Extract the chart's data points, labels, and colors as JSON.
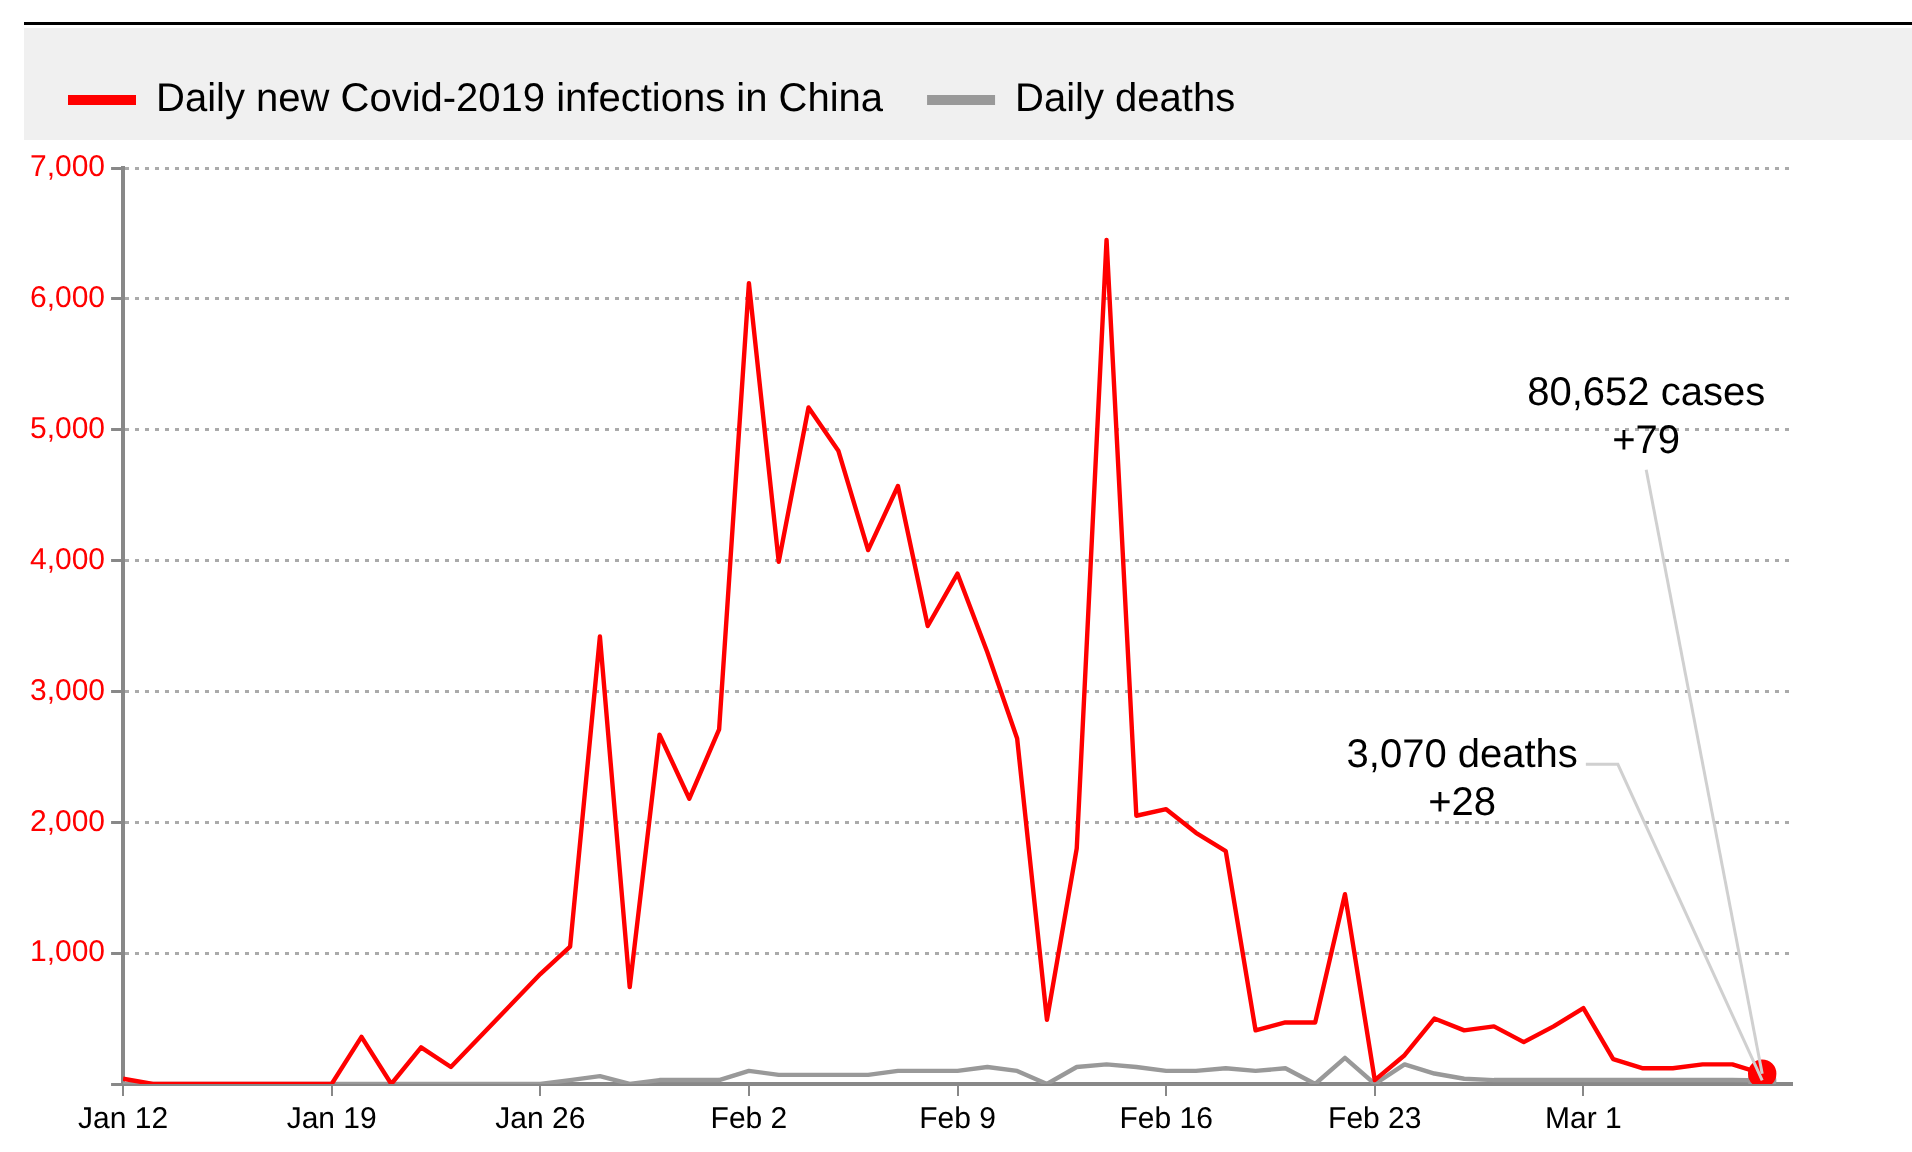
{
  "chart_data": {
    "type": "line",
    "legend": "top",
    "grid": "y",
    "marker": "none",
    "line_style": "solid",
    "xlim": [
      "--01-12",
      "--03-08"
    ],
    "xticks": [
      {
        "value": "--01-12",
        "label": "Jan 12"
      },
      {
        "value": "--01-19",
        "label": "Jan 19"
      },
      {
        "value": "--01-26",
        "label": "Jan 26"
      },
      {
        "value": "--02-02",
        "label": "Feb 2"
      },
      {
        "value": "--02-09",
        "label": "Feb 9"
      },
      {
        "value": "--02-16",
        "label": "Feb 16"
      },
      {
        "value": "--02-23",
        "label": "Feb 23"
      },
      {
        "value": "--03-01",
        "label": "Mar 1"
      }
    ],
    "ylim": [
      0,
      7000
    ],
    "yticks": [
      {
        "value": 0,
        "label": null
      },
      {
        "value": 1000,
        "label": "1,000"
      },
      {
        "value": 2000,
        "label": "2,000"
      },
      {
        "value": 3000,
        "label": "3,000"
      },
      {
        "value": 4000,
        "label": "4,000"
      },
      {
        "value": 5000,
        "label": "5,000"
      },
      {
        "value": 6000,
        "label": "6,000"
      },
      {
        "value": 7000,
        "label": "7,000"
      }
    ],
    "series": [
      {
        "name": "Daily new Covid-2019 infections in China",
        "color": "#ff0000",
        "x": [
          "--01-12",
          "--01-13",
          "--01-14",
          "--01-15",
          "--01-16",
          "--01-17",
          "--01-18",
          "--01-19",
          "--01-20",
          "--01-21",
          "--01-22",
          "--01-23",
          "--01-26",
          "--01-27",
          "--01-28",
          "--01-29",
          "--01-30",
          "--01-31",
          "--02-01",
          "--02-02",
          "--02-03",
          "--02-04",
          "--02-05",
          "--02-06",
          "--02-07",
          "--02-08",
          "--02-09",
          "--02-10",
          "--02-11",
          "--02-12",
          "--02-13",
          "--02-14",
          "--02-15",
          "--02-16",
          "--02-17",
          "--02-18",
          "--02-19",
          "--02-20",
          "--02-21",
          "--02-22",
          "--02-23",
          "--02-24",
          "--02-25",
          "--02-26",
          "--02-27",
          "--02-28",
          "--02-29",
          "--03-01",
          "--03-02",
          "--03-03",
          "--03-04",
          "--03-05",
          "--03-06",
          "--03-07"
        ],
        "values": [
          40,
          0,
          0,
          0,
          0,
          0,
          0,
          0,
          360,
          0,
          280,
          130,
          840,
          1050,
          3420,
          740,
          2670,
          2180,
          2710,
          6120,
          3990,
          5170,
          4840,
          4080,
          4570,
          3500,
          3900,
          3300,
          2640,
          490,
          1800,
          6450,
          2050,
          2100,
          1920,
          1780,
          410,
          470,
          470,
          1450,
          30,
          220,
          500,
          410,
          440,
          320,
          440,
          580,
          190,
          120,
          120,
          150,
          150,
          79
        ]
      },
      {
        "name": "Daily deaths",
        "color": "#999999",
        "x": [
          "--01-12",
          "--01-26",
          "--01-27",
          "--01-28",
          "--01-29",
          "--01-30",
          "--01-31",
          "--02-01",
          "--02-02",
          "--02-03",
          "--02-04",
          "--02-05",
          "--02-06",
          "--02-07",
          "--02-08",
          "--02-09",
          "--02-10",
          "--02-11",
          "--02-12",
          "--02-13",
          "--02-14",
          "--02-15",
          "--02-16",
          "--02-17",
          "--02-18",
          "--02-19",
          "--02-20",
          "--02-21",
          "--02-22",
          "--02-23",
          "--02-24",
          "--02-25",
          "--02-26",
          "--02-27",
          "--02-28",
          "--02-29",
          "--03-01",
          "--03-02",
          "--03-03",
          "--03-04",
          "--03-05",
          "--03-06",
          "--03-07"
        ],
        "values": [
          0,
          0,
          30,
          60,
          0,
          30,
          30,
          30,
          100,
          70,
          70,
          70,
          70,
          100,
          100,
          100,
          130,
          100,
          0,
          130,
          150,
          130,
          100,
          100,
          120,
          100,
          120,
          0,
          200,
          0,
          150,
          80,
          40,
          30,
          30,
          30,
          30,
          30,
          30,
          30,
          30,
          30,
          28
        ]
      }
    ],
    "annotations": [
      {
        "text": "80,652 cases\n+79",
        "x": "--03-07",
        "y": 79
      },
      {
        "text": "3,070 deaths\n+28",
        "x": "--03-07",
        "y": 28
      }
    ]
  }
}
